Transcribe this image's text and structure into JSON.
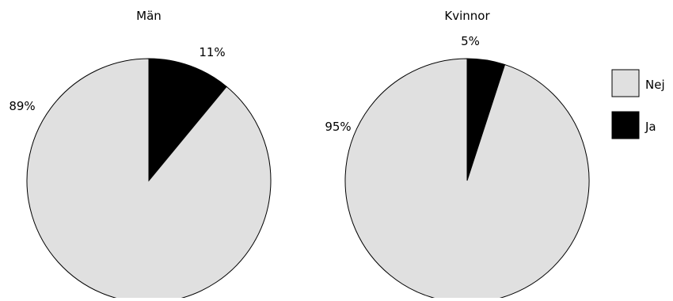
{
  "chart_data": [
    {
      "type": "pie",
      "title": "Män",
      "categories": [
        "Nej",
        "Ja"
      ],
      "values": [
        89,
        11
      ],
      "labels": [
        "89%",
        "11%"
      ]
    },
    {
      "type": "pie",
      "title": "Kvinnor",
      "categories": [
        "Nej",
        "Ja"
      ],
      "values": [
        95,
        5
      ],
      "labels": [
        "95%",
        "5%"
      ]
    }
  ],
  "legend": {
    "placement": "right",
    "items": [
      {
        "label": "Nej",
        "color": "#e0e0e0"
      },
      {
        "label": "Ja",
        "color": "#000000"
      }
    ]
  },
  "colors": {
    "Nej": "#e0e0e0",
    "Ja": "#000000",
    "outline": "#000000"
  }
}
